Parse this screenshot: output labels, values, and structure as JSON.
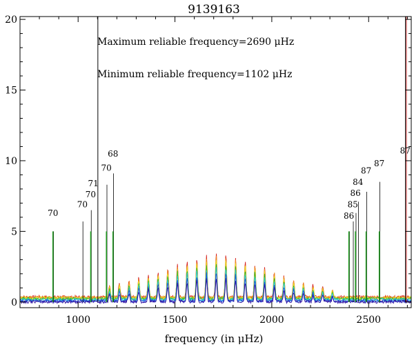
{
  "chart_data": {
    "type": "line",
    "title": "9139163",
    "xlabel": "frequency (in μHz)",
    "ylabel": "",
    "xlim": [
      700,
      2720
    ],
    "ylim": [
      -0.4,
      20.2
    ],
    "xticks": [
      1000,
      1500,
      2000,
      2500
    ],
    "yticks": [
      0,
      5,
      10,
      15,
      20
    ],
    "annotations": [
      "Maximum reliable frequency=2690 μHz",
      "Minimum reliable frequency=1102 μHz"
    ],
    "reliable_range": {
      "min": 1102,
      "max": 2690
    },
    "peak_centers": [
      1162,
      1213,
      1263,
      1313,
      1363,
      1413,
      1463,
      1513,
      1563,
      1613,
      1663,
      1713,
      1763,
      1813,
      1863,
      1913,
      1963,
      2013,
      2063,
      2113,
      2163,
      2213,
      2263,
      2313
    ],
    "peak_heights": [
      0.9,
      1.0,
      1.15,
      1.35,
      1.55,
      1.8,
      2.0,
      2.3,
      2.55,
      2.8,
      2.95,
      3.1,
      3.0,
      2.8,
      2.55,
      2.3,
      2.05,
      1.8,
      1.5,
      1.25,
      1.05,
      0.85,
      0.7,
      0.55
    ],
    "series": [
      {
        "name": "red",
        "color": "#d42020",
        "scale": 1.0,
        "baseline": 0.35
      },
      {
        "name": "orange",
        "color": "#f08c1e",
        "scale": 0.95,
        "baseline": 0.32
      },
      {
        "name": "yellow",
        "color": "#e8e020",
        "scale": 0.9,
        "baseline": 0.28
      },
      {
        "name": "green",
        "color": "#30c030",
        "scale": 0.82,
        "baseline": 0.22
      },
      {
        "name": "cyan",
        "color": "#20c8d8",
        "scale": 0.74,
        "baseline": 0.15
      },
      {
        "name": "blue",
        "color": "#2050e0",
        "scale": 0.65,
        "baseline": 0.08
      },
      {
        "name": "indigo",
        "color": "#3010a0",
        "scale": 0.55,
        "baseline": 0.02
      }
    ],
    "marker_lines": [
      {
        "x": 870,
        "green": 5.0,
        "black": 5.0,
        "label": "70",
        "label_y": 6.1
      },
      {
        "x": 1022,
        "green": 0,
        "black": 5.7,
        "label": "70",
        "label_y": 6.7
      },
      {
        "x": 1065,
        "green": 5.0,
        "black": 6.5,
        "label": "70",
        "label_y": 7.4
      },
      {
        "x": 1078,
        "green": 0,
        "black": 0,
        "label": "71",
        "label_y": 8.2
      },
      {
        "x": 1146,
        "green": 5.0,
        "black": 8.3,
        "label": "70",
        "label_y": 9.3
      },
      {
        "x": 1180,
        "green": 5.0,
        "black": 9.1,
        "label": "68",
        "label_y": 10.3
      },
      {
        "x": 2398,
        "green": 5.0,
        "black": 5.0,
        "label": "86",
        "label_y": 5.9
      },
      {
        "x": 2418,
        "green": 0,
        "black": 5.7,
        "label": "85",
        "label_y": 6.7
      },
      {
        "x": 2432,
        "green": 5.0,
        "black": 6.3,
        "label": "86",
        "label_y": 7.5
      },
      {
        "x": 2445,
        "green": 0,
        "black": 7.1,
        "label": "84",
        "label_y": 8.3
      },
      {
        "x": 2487,
        "green": 5.0,
        "black": 7.8,
        "label": "87",
        "label_y": 9.1
      },
      {
        "x": 2555,
        "green": 5.0,
        "black": 8.5,
        "label": "87",
        "label_y": 9.6
      },
      {
        "x": 2689,
        "green": 0,
        "black": 0,
        "label": "87",
        "label_y": 10.5
      }
    ],
    "vertical_limit_lines": [
      {
        "x": 1102,
        "color": "#000000"
      },
      {
        "x": 2690,
        "color": "#000000"
      },
      {
        "x": 2695,
        "color": "#c03030"
      }
    ]
  }
}
